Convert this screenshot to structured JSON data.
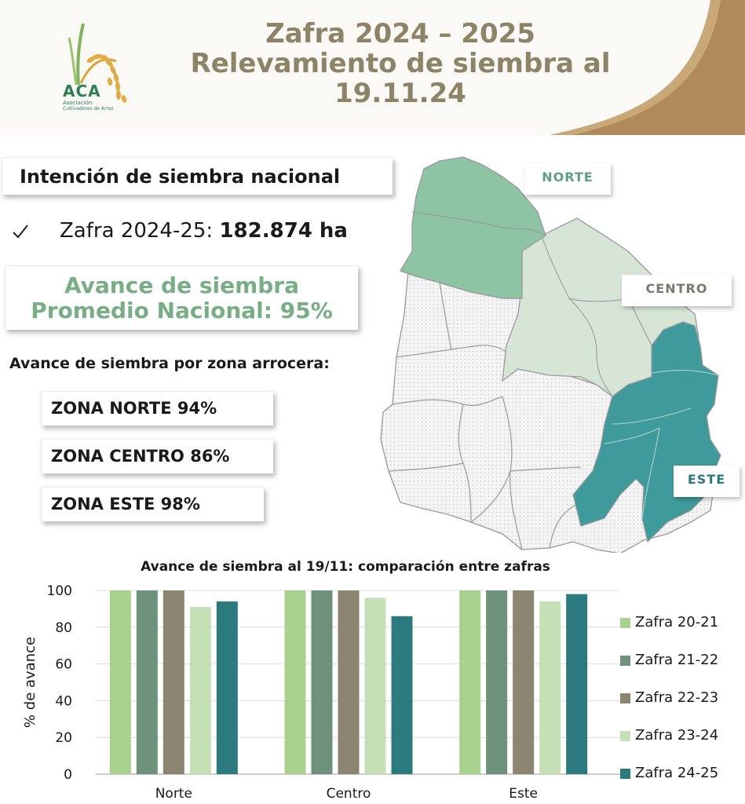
{
  "header": {
    "title_line1": "Zafra 2024 – 2025",
    "title_line2": "Relevamiento de siembra al",
    "title_line3": "19.11.24",
    "logo_text": "ACA",
    "logo_sub1": "Asociación",
    "logo_sub2": "Cultivadores de Arroz"
  },
  "summary": {
    "intencion_title": "Intención de siembra nacional",
    "check_icon": "checkmark-icon",
    "zafra_label": "Zafra 2024-25: ",
    "zafra_value": "182.874 ha",
    "avance_line1": "Avance de siembra",
    "avance_line2": "Promedio Nacional: 95%",
    "por_zona_label": "Avance de siembra por zona arrocera:",
    "zona_norte": "ZONA NORTE 94%",
    "zona_centro": "ZONA CENTRO 86%",
    "zona_este": "ZONA ESTE 98%"
  },
  "map": {
    "label_norte": "NORTE",
    "label_centro": "CENTRO",
    "label_este": "ESTE",
    "colors": {
      "norte": "#8ec5a5",
      "centro": "#d4e4d5",
      "este": "#3d9a9b",
      "other": "#f3f3f3",
      "border": "#9a9a9a"
    }
  },
  "chart_data": {
    "type": "bar",
    "title": "Avance de siembra al 19/11: comparación entre zafras",
    "xlabel": "",
    "ylabel": "% de avance",
    "ylim": [
      0,
      100
    ],
    "yticks": [
      0,
      20,
      40,
      60,
      80,
      100
    ],
    "grid": true,
    "legend_position": "right",
    "categories": [
      "Norte",
      "Centro",
      "Este"
    ],
    "series": [
      {
        "name": "Zafra 20-21",
        "color": "#a9d18e",
        "values": [
          100,
          100,
          100
        ]
      },
      {
        "name": "Zafra 21-22",
        "color": "#6d917a",
        "values": [
          100,
          100,
          100
        ]
      },
      {
        "name": "Zafra 22-23",
        "color": "#8a8470",
        "values": [
          100,
          100,
          100
        ]
      },
      {
        "name": "Zafra 23-24",
        "color": "#c5e0b4",
        "values": [
          91,
          96,
          94
        ]
      },
      {
        "name": "Zafra 24-25",
        "color": "#2b7b7e",
        "values": [
          94,
          86,
          98
        ]
      }
    ]
  }
}
